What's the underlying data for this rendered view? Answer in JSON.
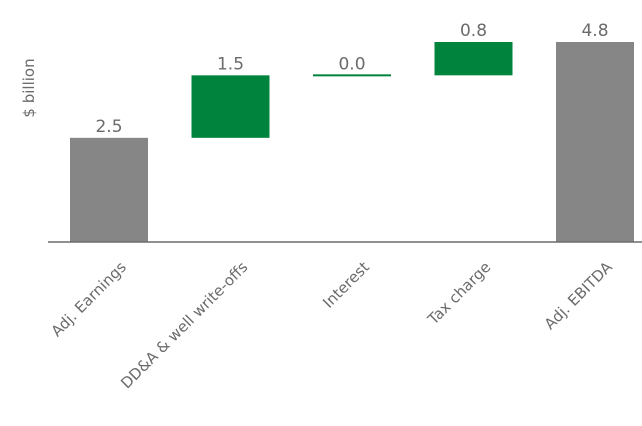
{
  "chart_data": {
    "type": "bar",
    "subtype": "waterfall",
    "ylabel": "$ billion",
    "xlabel": "",
    "categories": [
      "Adj. Earnings",
      "DD&A & well write-offs",
      "Interest",
      "Tax charge",
      "Adj. EBITDA"
    ],
    "values": [
      2.5,
      1.5,
      0.0,
      0.8,
      4.8
    ],
    "value_labels": [
      "2.5",
      "1.5",
      "0.0",
      "0.8",
      "4.8"
    ],
    "bar_kinds": [
      "total",
      "increase",
      "increase",
      "increase",
      "total"
    ],
    "ylim": [
      0,
      4.8
    ],
    "grid": false,
    "legend": "none",
    "colors": {
      "total": "#868686",
      "increase": "#00843d",
      "axis": "#6b6b6b",
      "text": "#6b6b6b"
    }
  }
}
